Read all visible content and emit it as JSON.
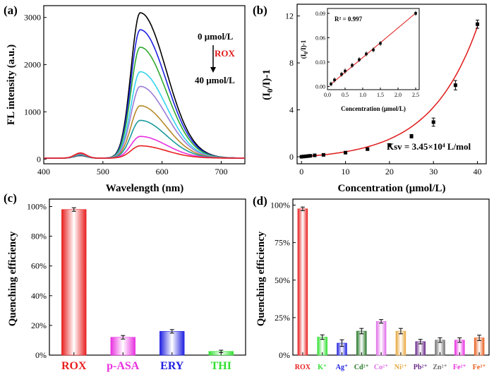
{
  "chart_data": [
    {
      "panel": "(a)",
      "type": "line",
      "xlabel": "Wavelength (nm)",
      "ylabel": "FL intensity (a.u.)",
      "xlim": [
        400,
        740
      ],
      "ylim": [
        -100,
        3250
      ],
      "xticks": [
        "400",
        "500",
        "600",
        "700"
      ],
      "yticks": [
        "0",
        "1000",
        "2000",
        "3000"
      ],
      "annotations": {
        "top": "0 μmol/L",
        "middle": "ROX",
        "bottom": "40 μmol/L"
      },
      "peak_wavelength": 563,
      "series": [
        {
          "peak": 3080,
          "color": "#000000"
        },
        {
          "peak": 2720,
          "color": "#1e22e0"
        },
        {
          "peak": 2350,
          "color": "#2ea82e"
        },
        {
          "peak": 1830,
          "color": "#33d3ee"
        },
        {
          "peak": 1520,
          "color": "#9a7cd6"
        },
        {
          "peak": 1110,
          "color": "#b58a2a"
        },
        {
          "peak": 800,
          "color": "#1a9a9a"
        },
        {
          "peak": 460,
          "color": "#e830e0"
        },
        {
          "peak": 260,
          "color": "#e82020"
        }
      ]
    },
    {
      "panel": "(b)",
      "type": "scatter",
      "xlabel": "Concentration (μmol/L)",
      "ylabel": "(I0/I)-1",
      "xlim": [
        -1,
        42
      ],
      "ylim": [
        -0.6,
        13
      ],
      "xticks": [
        "0",
        "10",
        "20",
        "30",
        "40"
      ],
      "yticks": [
        "0",
        "4",
        "8",
        "12"
      ],
      "x": [
        0,
        0.5,
        1,
        1.5,
        2,
        3,
        5,
        10,
        15,
        20,
        25,
        30,
        35,
        40
      ],
      "y": [
        0.0,
        0.02,
        0.04,
        0.06,
        0.08,
        0.12,
        0.16,
        0.35,
        0.65,
        1.0,
        1.75,
        2.95,
        6.1,
        11.3
      ],
      "error": [
        0.05,
        0.05,
        0.05,
        0.05,
        0.05,
        0.05,
        0.06,
        0.08,
        0.1,
        0.12,
        0.15,
        0.35,
        0.4,
        0.35
      ],
      "ksv_label": "Ksv = 3.45×10⁴ L/mol",
      "inset": {
        "xlabel": "Concentration (μmol/L)",
        "ylabel": "(I0/I)-1",
        "xlim": [
          0,
          2.6
        ],
        "ylim": [
          -0.004,
          0.096
        ],
        "xticks": [
          "0.0",
          "0.5",
          "1.0",
          "1.5",
          "2.0",
          "2.5"
        ],
        "yticks": [
          "0.00",
          "0.03",
          "0.06",
          "0.09"
        ],
        "x": [
          0.1,
          0.2,
          0.4,
          0.5,
          0.7,
          0.9,
          1.1,
          1.3,
          1.5,
          2.5
        ],
        "y": [
          0.003,
          0.008,
          0.015,
          0.019,
          0.026,
          0.033,
          0.04,
          0.045,
          0.053,
          0.09
        ],
        "r2_label": "R² = 0.997"
      }
    },
    {
      "panel": "(c)",
      "type": "bar",
      "ylabel": "Quenching efficiency",
      "ylim": [
        0,
        105
      ],
      "yticks": [
        "0%",
        "20%",
        "40%",
        "60%",
        "80%",
        "100%"
      ],
      "categories": [
        "ROX",
        "p-ASA",
        "ERY",
        "THI"
      ],
      "values": [
        98,
        12,
        16,
        2.5
      ],
      "errors": [
        1.2,
        1.2,
        1.2,
        0.8
      ],
      "colors": [
        "#e82020",
        "#e830e0",
        "#2020e0",
        "#30e030"
      ]
    },
    {
      "panel": "(d)",
      "type": "bar",
      "ylabel": "Quenching efficiency",
      "ylim": [
        0,
        104
      ],
      "yticks": [
        "0%",
        "25%",
        "50%",
        "75%",
        "100%"
      ],
      "categories": [
        "ROX",
        "K⁺",
        "Ag⁺",
        "Cd²⁺",
        "Co²⁺",
        "Ni²⁺",
        "Pb²⁺",
        "Zn²⁺",
        "Fe²⁺",
        "Fe³⁺"
      ],
      "values": [
        97.5,
        12,
        8,
        16,
        22.5,
        16,
        9,
        10,
        10,
        11.5
      ],
      "errors": [
        1.2,
        1.5,
        2.2,
        1.8,
        1.2,
        1.8,
        1.5,
        1.5,
        1.5,
        1.8
      ],
      "colors": [
        "#e82020",
        "#30e030",
        "#2020e0",
        "#2a7a2a",
        "#e070e8",
        "#e8a840",
        "#6a2a8a",
        "#707070",
        "#e830e0",
        "#e86020"
      ]
    }
  ]
}
